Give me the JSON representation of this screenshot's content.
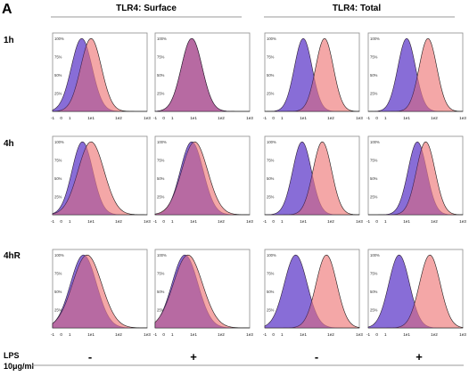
{
  "figure": {
    "panel_letter": "A",
    "group_titles": [
      "TLR4: Surface",
      "TLR4: Total"
    ],
    "row_labels": [
      "1h",
      "4h",
      "4hR"
    ],
    "condition_label": "LPS",
    "condition_unit": "10μg/ml",
    "condition_signs": [
      "-",
      "+",
      "-",
      "+"
    ]
  },
  "colors": {
    "control": "#7b7bf2",
    "treated": "#f08a8a",
    "overlap": "#7a2fa0",
    "outline": "#1a1a1a",
    "title_line": "#9a9a9a"
  },
  "chart_data": {
    "type": "area",
    "x_axis": {
      "scale": "log",
      "range": [
        -1,
        1000
      ],
      "ticks": [
        "-1",
        "0",
        "1",
        "1e1",
        "1e2",
        "1e3"
      ]
    },
    "y_axis": {
      "range": [
        0,
        100
      ],
      "ticks": [
        "25%",
        "50%",
        "75%",
        "100%"
      ]
    },
    "grid": false,
    "series_legend": {
      "control_histogram": "blue",
      "comparison_histogram": "red"
    },
    "panels": [
      {
        "row": "1h",
        "group": "TLR4: Surface",
        "lps": "-",
        "blue": {
          "peak": 4.2,
          "width": 0.2
        },
        "red": {
          "peak": 10,
          "width": 0.2
        }
      },
      {
        "row": "1h",
        "group": "TLR4: Surface",
        "lps": "+",
        "blue": {
          "peak": 8.5,
          "width": 0.2
        },
        "red": {
          "peak": 8.5,
          "width": 0.2
        }
      },
      {
        "row": "1h",
        "group": "TLR4: Total",
        "lps": "-",
        "blue": {
          "peak": 10,
          "width": 0.17
        },
        "red": {
          "peak": 60,
          "width": 0.17
        }
      },
      {
        "row": "1h",
        "group": "TLR4: Total",
        "lps": "+",
        "blue": {
          "peak": 10,
          "width": 0.17
        },
        "red": {
          "peak": 60,
          "width": 0.17
        }
      },
      {
        "row": "4h",
        "group": "TLR4: Surface",
        "lps": "-",
        "blue": {
          "peak": 4.5,
          "width": 0.2
        },
        "red": {
          "peak": 10,
          "width": 0.25
        }
      },
      {
        "row": "4h",
        "group": "TLR4: Surface",
        "lps": "+",
        "blue": {
          "peak": 8.5,
          "width": 0.22
        },
        "red": {
          "peak": 11,
          "width": 0.25
        }
      },
      {
        "row": "4h",
        "group": "TLR4: Total",
        "lps": "-",
        "blue": {
          "peak": 9,
          "width": 0.18
        },
        "red": {
          "peak": 50,
          "width": 0.18
        }
      },
      {
        "row": "4h",
        "group": "TLR4: Total",
        "lps": "+",
        "blue": {
          "peak": 25,
          "width": 0.18
        },
        "red": {
          "peak": 50,
          "width": 0.18
        }
      },
      {
        "row": "4hR",
        "group": "TLR4: Surface",
        "lps": "-",
        "blue": {
          "peak": 5,
          "width": 0.25
        },
        "red": {
          "peak": 7,
          "width": 0.28
        }
      },
      {
        "row": "4hR",
        "group": "TLR4: Surface",
        "lps": "+",
        "blue": {
          "peak": 4.5,
          "width": 0.25
        },
        "red": {
          "peak": 6,
          "width": 0.28
        }
      },
      {
        "row": "4hR",
        "group": "TLR4: Total",
        "lps": "-",
        "blue": {
          "peak": 5,
          "width": 0.22
        },
        "red": {
          "peak": 70,
          "width": 0.2
        }
      },
      {
        "row": "4hR",
        "group": "TLR4: Total",
        "lps": "+",
        "blue": {
          "peak": 5,
          "width": 0.2
        },
        "red": {
          "peak": 70,
          "width": 0.2
        }
      }
    ]
  }
}
